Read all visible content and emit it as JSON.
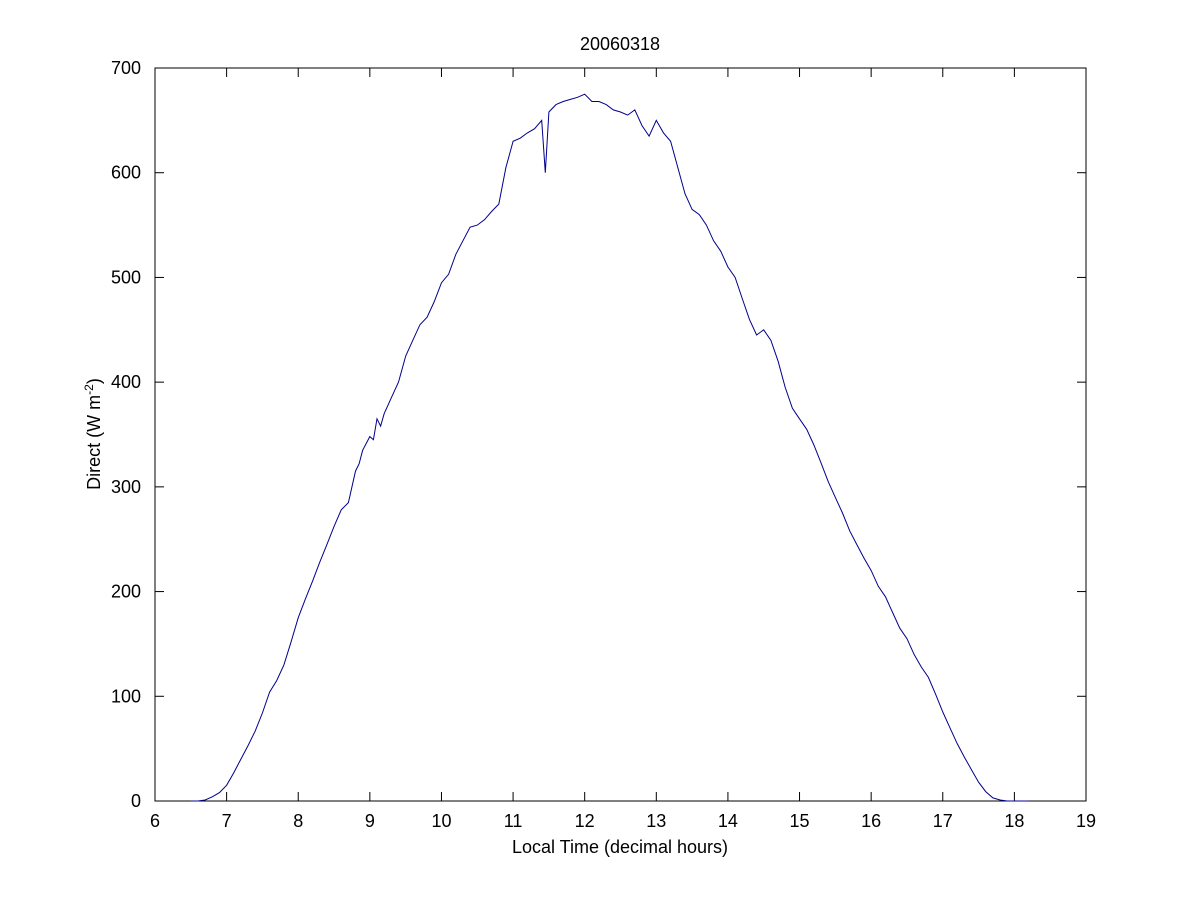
{
  "chart_data": {
    "type": "line",
    "title": "20060318",
    "xlabel": "Local Time (decimal hours)",
    "ylabel_main": "Direct (W m",
    "ylabel_sup": "-2",
    "ylabel_close": ")",
    "xlim": [
      6,
      19
    ],
    "ylim": [
      0,
      700
    ],
    "xticks": [
      6,
      7,
      8,
      9,
      10,
      11,
      12,
      13,
      14,
      15,
      16,
      17,
      18,
      19
    ],
    "yticks": [
      0,
      100,
      200,
      300,
      400,
      500,
      600,
      700
    ],
    "grid": false,
    "legend": "none",
    "line_color": "#00008B",
    "series": [
      {
        "x": [
          6.5,
          6.6,
          6.7,
          6.8,
          6.9,
          7.0,
          7.1,
          7.2,
          7.3,
          7.4,
          7.5,
          7.6,
          7.7,
          7.8,
          7.9,
          8.0,
          8.1,
          8.2,
          8.3,
          8.4,
          8.5,
          8.6,
          8.7,
          8.8,
          8.85,
          8.9,
          9.0,
          9.05,
          9.1,
          9.15,
          9.2,
          9.3,
          9.4,
          9.5,
          9.6,
          9.7,
          9.8,
          9.9,
          10.0,
          10.1,
          10.2,
          10.3,
          10.4,
          10.5,
          10.6,
          10.7,
          10.8,
          10.9,
          11.0,
          11.1,
          11.2,
          11.3,
          11.4,
          11.45,
          11.5,
          11.6,
          11.7,
          11.8,
          11.9,
          12.0,
          12.1,
          12.2,
          12.3,
          12.4,
          12.5,
          12.6,
          12.7,
          12.8,
          12.9,
          13.0,
          13.1,
          13.2,
          13.3,
          13.4,
          13.5,
          13.6,
          13.7,
          13.8,
          13.9,
          14.0,
          14.1,
          14.2,
          14.3,
          14.4,
          14.5,
          14.6,
          14.7,
          14.8,
          14.9,
          15.0,
          15.1,
          15.2,
          15.3,
          15.4,
          15.5,
          15.6,
          15.7,
          15.8,
          15.9,
          16.0,
          16.1,
          16.2,
          16.3,
          16.4,
          16.5,
          16.6,
          16.7,
          16.8,
          16.9,
          17.0,
          17.1,
          17.2,
          17.3,
          17.4,
          17.5,
          17.6,
          17.7,
          17.8,
          17.9,
          18.0,
          18.1,
          18.2
        ],
        "y": [
          0,
          0,
          1,
          4,
          8,
          15,
          27,
          40,
          53,
          67,
          84,
          104,
          115,
          130,
          152,
          175,
          193,
          210,
          228,
          245,
          262,
          278,
          285,
          315,
          322,
          335,
          348,
          345,
          365,
          358,
          370,
          385,
          400,
          425,
          440,
          455,
          462,
          477,
          495,
          503,
          522,
          535,
          548,
          550,
          555,
          563,
          570,
          605,
          630,
          633,
          638,
          642,
          650,
          600,
          658,
          665,
          668,
          670,
          672,
          675,
          668,
          668,
          665,
          660,
          658,
          655,
          660,
          645,
          635,
          650,
          638,
          630,
          605,
          580,
          565,
          560,
          550,
          535,
          525,
          510,
          500,
          480,
          460,
          445,
          450,
          440,
          420,
          395,
          375,
          365,
          355,
          340,
          323,
          305,
          290,
          275,
          258,
          245,
          232,
          220,
          205,
          195,
          180,
          165,
          155,
          140,
          128,
          118,
          102,
          85,
          70,
          55,
          42,
          30,
          18,
          9,
          3,
          1,
          0,
          0,
          0,
          0
        ]
      }
    ]
  }
}
